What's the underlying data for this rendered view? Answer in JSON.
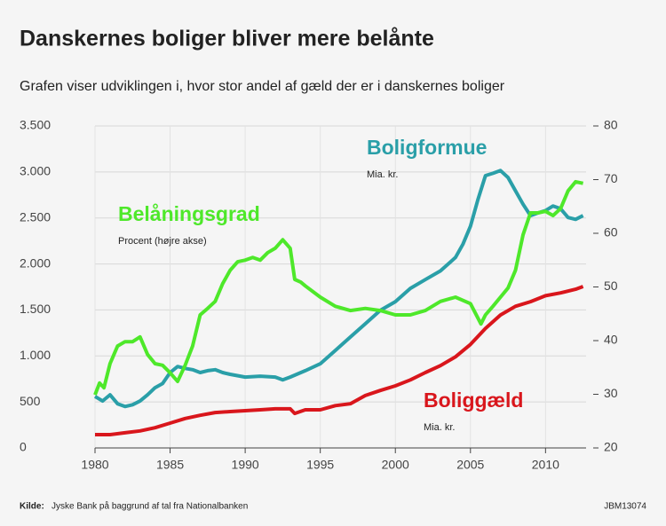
{
  "chart_data": {
    "type": "line",
    "title": "Danskernes boliger bliver mere belånte",
    "subtitle": "Grafen viser udviklingen i, hvor stor andel af gæld der er i danskernes boliger",
    "source_label": "Kilde:",
    "source": "Jyske Bank på baggrund af tal fra Nationalbanken",
    "code": "JBM13074",
    "xlim": [
      1980,
      2012.7
    ],
    "xticks": [
      1980,
      1985,
      1990,
      1995,
      2000,
      2005,
      2010
    ],
    "ylim": [
      0,
      3500
    ],
    "yticks": [
      0,
      500,
      {
        "value": 1000,
        "label": "1.000"
      },
      {
        "value": 1500,
        "label": "1.500"
      },
      {
        "value": 2000,
        "label": "2.000"
      },
      {
        "value": 2500,
        "label": "2.500"
      },
      {
        "value": 3000,
        "label": "3.000"
      },
      {
        "value": 3500,
        "label": "3.500"
      }
    ],
    "y2lim": [
      20,
      80
    ],
    "y2ticks": [
      20,
      30,
      40,
      50,
      60,
      70,
      80
    ],
    "grid": true,
    "series": [
      {
        "name": "Boligformue",
        "unit": "Mia. kr.",
        "color": "#2a9fa8",
        "x": [
          1980,
          1980.5,
          1981,
          1981.5,
          1982,
          1982.5,
          1983,
          1983.5,
          1984,
          1984.5,
          1985,
          1985.5,
          1986,
          1986.5,
          1987,
          1987.5,
          1988,
          1988.5,
          1989,
          1990,
          1991,
          1992,
          1992.5,
          1993,
          1994,
          1995,
          1996,
          1997,
          1998,
          1999,
          2000,
          2001,
          2002,
          2003,
          2004,
          2004.5,
          2005,
          2005.5,
          2006,
          2006.5,
          2007,
          2007.5,
          2008,
          2008.5,
          2009,
          2009.5,
          2010,
          2010.5,
          2011,
          2011.5,
          2012,
          2012.5
        ],
        "values": [
          560,
          510,
          578,
          480,
          450,
          470,
          510,
          578,
          655,
          700,
          820,
          885,
          865,
          850,
          820,
          840,
          850,
          820,
          800,
          770,
          780,
          770,
          740,
          770,
          840,
          915,
          1060,
          1205,
          1350,
          1495,
          1590,
          1735,
          1830,
          1925,
          2070,
          2215,
          2410,
          2700,
          2960,
          2985,
          3015,
          2940,
          2795,
          2650,
          2525,
          2555,
          2580,
          2630,
          2600,
          2505,
          2485,
          2525
        ]
      },
      {
        "name": "Boliggæld",
        "unit": "Mia. kr.",
        "color": "#d9161c",
        "x": [
          1980,
          1981,
          1982,
          1983,
          1984,
          1985,
          1986,
          1987,
          1988,
          1989,
          1990,
          1991,
          1992,
          1993,
          1993.3,
          1994,
          1995,
          1996,
          1997,
          1998,
          1999,
          2000,
          2001,
          2002,
          2003,
          2004,
          2005,
          2006,
          2007,
          2008,
          2009,
          2010,
          2011,
          2012,
          2012.5
        ],
        "values": [
          145,
          145,
          165,
          185,
          220,
          270,
          320,
          355,
          385,
          395,
          405,
          415,
          425,
          425,
          375,
          415,
          415,
          460,
          480,
          570,
          625,
          675,
          740,
          820,
          895,
          990,
          1125,
          1300,
          1445,
          1540,
          1590,
          1655,
          1685,
          1725,
          1755
        ]
      },
      {
        "name": "Belåningsgrad",
        "unit": "Procent (højre akse)",
        "color": "#4ee82a",
        "axis": "y2",
        "x": [
          1980,
          1980.3,
          1980.6,
          1981,
          1981.5,
          1982,
          1982.5,
          1983,
          1983.5,
          1984,
          1984.5,
          1985,
          1985.5,
          1986,
          1986.5,
          1987,
          1987.5,
          1988,
          1988.5,
          1989,
          1989.5,
          1990,
          1990.5,
          1991,
          1991.5,
          1992,
          1992.5,
          1993,
          1993.3,
          1993.7,
          1994,
          1995,
          1996,
          1997,
          1998,
          1999,
          2000,
          2001,
          2002,
          2003,
          2004,
          2005,
          2005.7,
          2006,
          2006.5,
          2007,
          2007.5,
          2008,
          2008.5,
          2009,
          2009.5,
          2010,
          2010.5,
          2011,
          2011.5,
          2012,
          2012.5
        ],
        "values": [
          29.9,
          32.1,
          31.2,
          35.7,
          39.0,
          39.8,
          39.8,
          40.7,
          37.4,
          35.7,
          35.4,
          34.0,
          32.4,
          35.4,
          39.0,
          44.8,
          46.0,
          47.3,
          50.6,
          53.1,
          54.7,
          55.0,
          55.5,
          55.0,
          56.4,
          57.2,
          58.8,
          57.2,
          51.4,
          50.9,
          50.2,
          48.1,
          46.4,
          45.6,
          46.0,
          45.6,
          44.8,
          44.8,
          45.6,
          47.3,
          48.1,
          46.9,
          43.1,
          44.8,
          46.4,
          48.1,
          49.8,
          53.1,
          59.7,
          63.8,
          63.8,
          64.1,
          63.3,
          64.6,
          67.9,
          69.6,
          69.3
        ]
      }
    ]
  }
}
